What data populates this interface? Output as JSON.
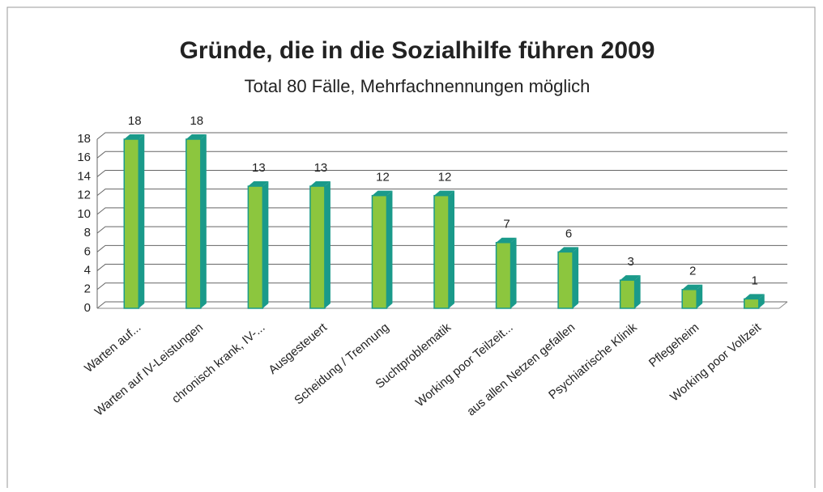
{
  "chart_data": {
    "type": "bar",
    "title": "Gründe, die in die Sozialhilfe führen 2009",
    "subtitle": "Total  80 Fälle, Mehrfachnennungen  möglich",
    "categories": [
      "Warten auf...",
      "Warten auf IV-Leistungen",
      "chronisch krank, IV-...",
      "Ausgesteuert",
      "Scheidung / Trennung",
      "Suchtproblematik",
      "Working poor Teilzeit...",
      "aus allen Netzen gefallen",
      "Psychiatrische Klinik",
      "Pflegeheim",
      "Working poor Vollzeit"
    ],
    "values": [
      18,
      18,
      13,
      13,
      12,
      12,
      7,
      6,
      3,
      2,
      1
    ],
    "color": "#8cc63e",
    "side_color": "#1a9a8a",
    "ylim": [
      0,
      18
    ],
    "yticks": [
      0,
      2,
      4,
      6,
      8,
      10,
      12,
      14,
      16,
      18
    ],
    "grid": true
  }
}
